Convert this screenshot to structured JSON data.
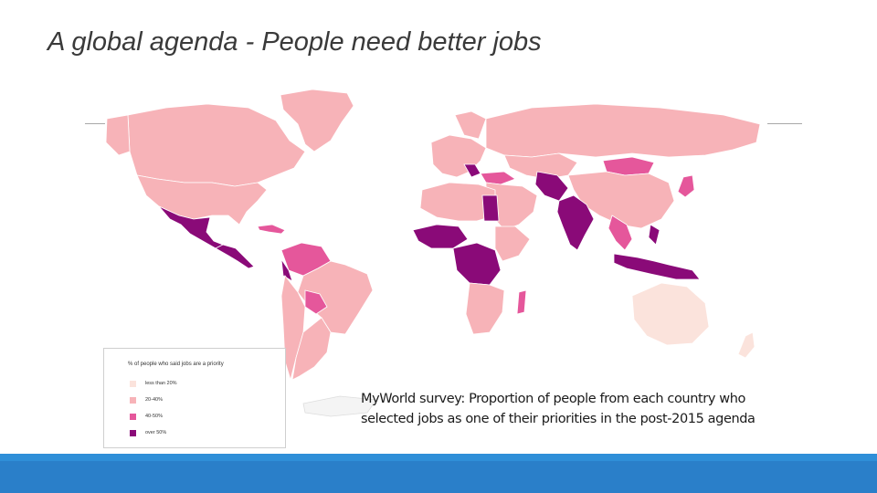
{
  "slide": {
    "title": "A global agenda - People need better jobs"
  },
  "legend": {
    "title": "% of people who said jobs are a priority",
    "items": [
      {
        "label": "less than 20%",
        "color": "#fbe3dc"
      },
      {
        "label": "20-40%",
        "color": "#f7b3b8"
      },
      {
        "label": "40-50%",
        "color": "#e5579b"
      },
      {
        "label": "over 50%",
        "color": "#8a0a78"
      }
    ]
  },
  "caption": {
    "line1": "MyWorld survey: Proportion of people from each country who",
    "line2": "selected jobs as one of their priorities in the post-2015 agenda"
  },
  "colors": {
    "footer": "#2a7fc9",
    "no_data": "#ffffff",
    "border": "#dddddd"
  }
}
